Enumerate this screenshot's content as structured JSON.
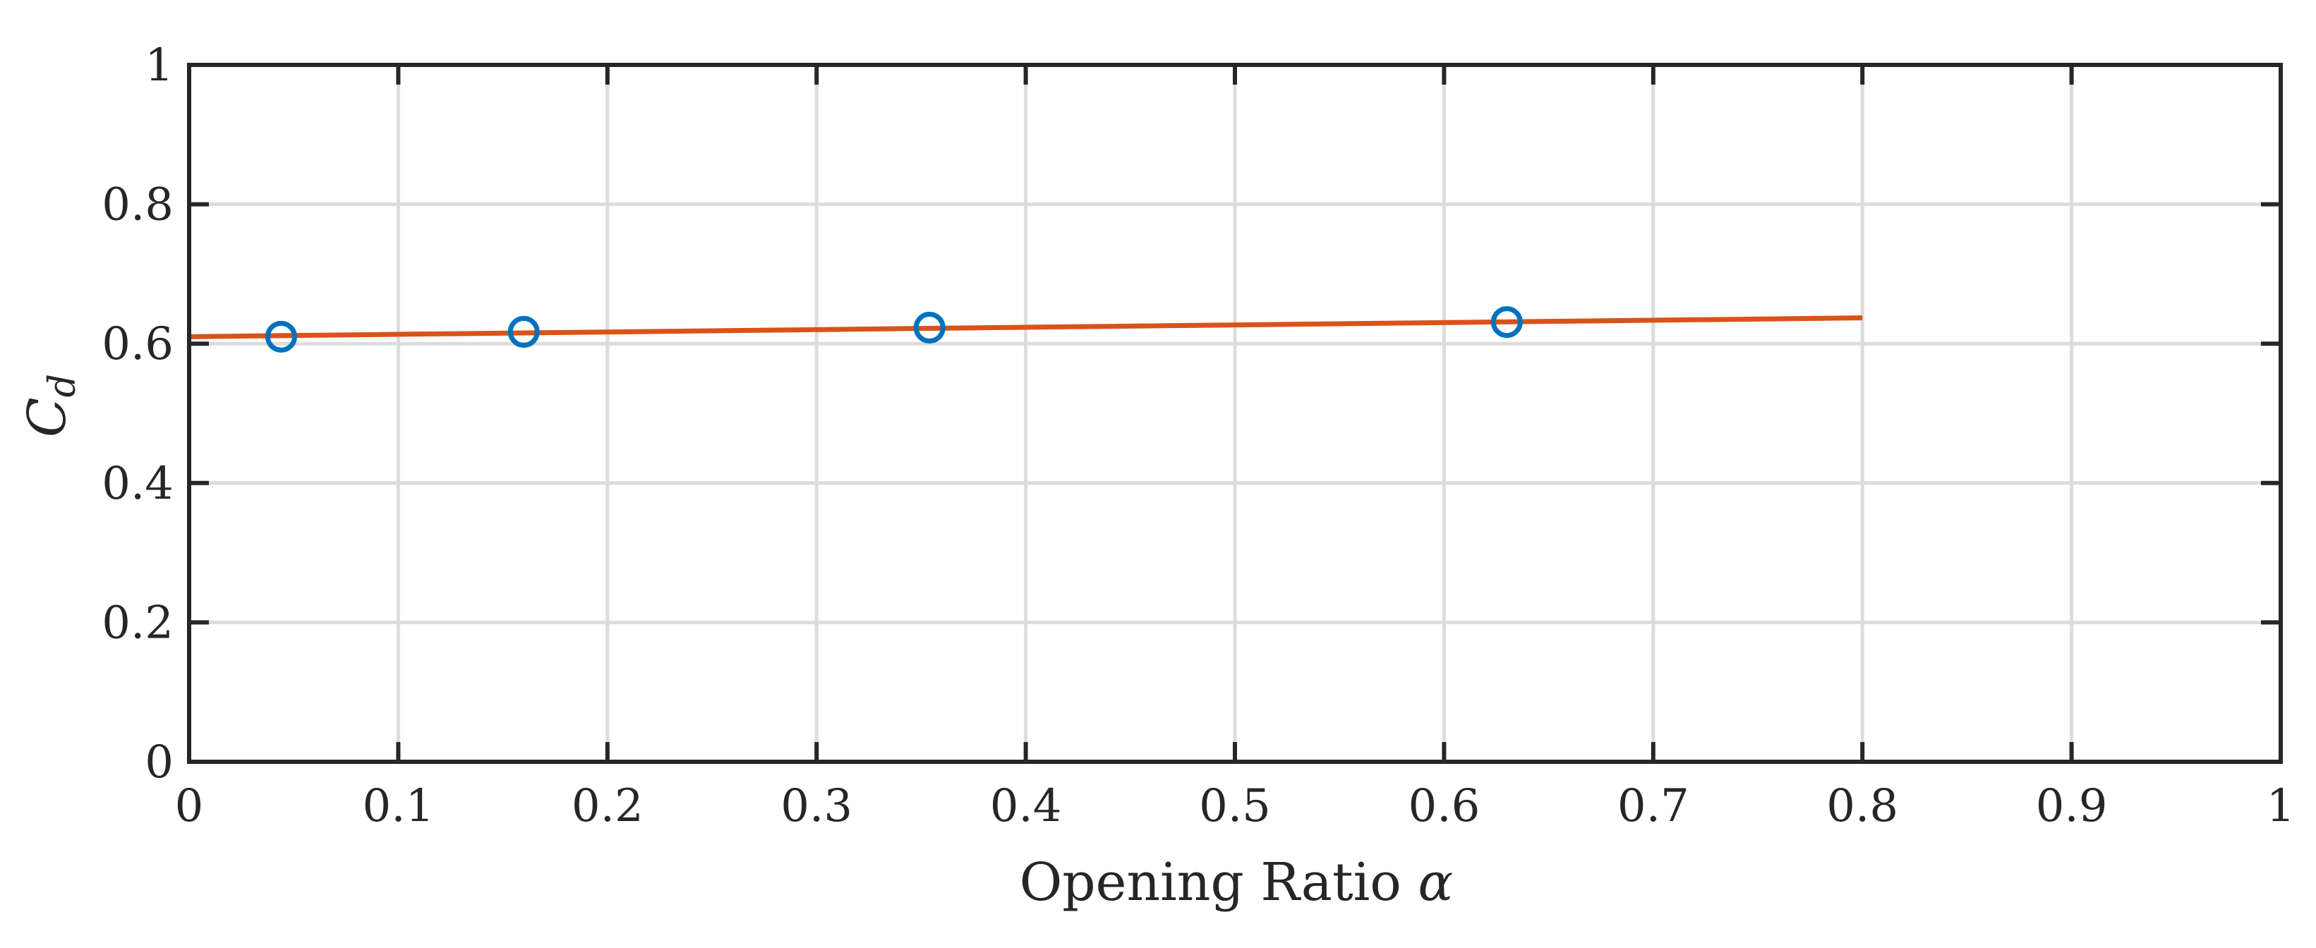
{
  "chart_data": {
    "type": "scatter",
    "xlabel": "Opening Ratio",
    "xlabel_symbol": "α",
    "ylabel": "C",
    "ylabel_sub": "d",
    "xlim": [
      0,
      1
    ],
    "ylim": [
      0,
      1
    ],
    "xticks": [
      0,
      0.1,
      0.2,
      0.3,
      0.4,
      0.5,
      0.6,
      0.7,
      0.8,
      0.9,
      1
    ],
    "xtick_labels": [
      "0",
      "0.1",
      "0.2",
      "0.3",
      "0.4",
      "0.5",
      "0.6",
      "0.7",
      "0.8",
      "0.9",
      "1"
    ],
    "yticks": [
      0,
      0.2,
      0.4,
      0.6,
      0.8,
      1
    ],
    "ytick_labels": [
      "0",
      "0.2",
      "0.4",
      "0.6",
      "0.8",
      "1"
    ],
    "grid": true,
    "series": [
      {
        "type": "scatter",
        "marker": "circle-open",
        "color": "#0072BD",
        "x": [
          0.044,
          0.16,
          0.354,
          0.63
        ],
        "y": [
          0.61,
          0.617,
          0.623,
          0.631
        ]
      },
      {
        "type": "line",
        "color": "#D95319",
        "x": [
          0,
          0.8
        ],
        "y": [
          0.61,
          0.637
        ]
      }
    ]
  }
}
